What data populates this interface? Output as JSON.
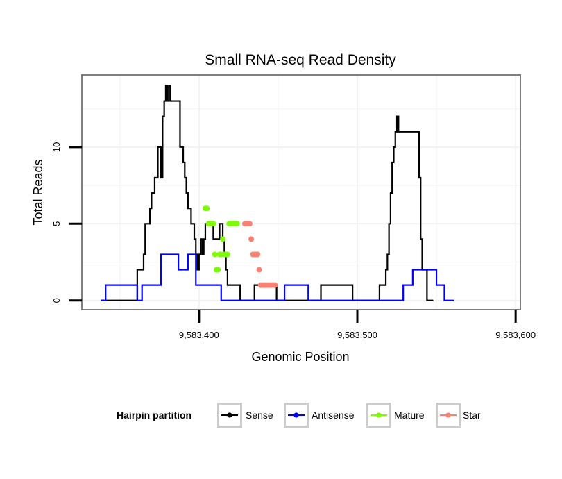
{
  "chart_data": {
    "type": "line",
    "title": "Small RNA-seq Read Density",
    "xlabel": "Genomic Position",
    "ylabel": "Total Reads",
    "xlim": [
      9583326,
      9583603
    ],
    "ylim": [
      -0.6,
      14.7
    ],
    "x_ticks": [
      9583400,
      9583500,
      9583600
    ],
    "x_tick_labels": [
      "9,583,400",
      "9,583,500",
      "9,583,600"
    ],
    "y_ticks": [
      0,
      5,
      10
    ],
    "y_tick_labels": [
      "0",
      "5",
      "10"
    ],
    "grid": true,
    "legend": {
      "title": "Hairpin partition",
      "position": "bottom",
      "entries": [
        {
          "label": "Sense",
          "color": "#000000"
        },
        {
          "label": "Antisense",
          "color": "#0000ff"
        },
        {
          "label": "Mature",
          "color": "#7cfc00"
        },
        {
          "label": "Star",
          "color": "#fa8072"
        }
      ]
    },
    "series": [
      {
        "name": "Sense",
        "color": "#000000",
        "style": "step",
        "points": [
          [
            9583338,
            0
          ],
          [
            9583359,
            0
          ],
          [
            9583361,
            2
          ],
          [
            9583364,
            2
          ],
          [
            9583365,
            3
          ],
          [
            9583366,
            5
          ],
          [
            9583368,
            5
          ],
          [
            9583369,
            6
          ],
          [
            9583370,
            7
          ],
          [
            9583372,
            8
          ],
          [
            9583373,
            8
          ],
          [
            9583374,
            10
          ],
          [
            9583375,
            10
          ],
          [
            9583376,
            8
          ],
          [
            9583377,
            12
          ],
          [
            9583378,
            13
          ],
          [
            9583379,
            14
          ],
          [
            9583380,
            13
          ],
          [
            9583381,
            14
          ],
          [
            9583382,
            13
          ],
          [
            9583387,
            13
          ],
          [
            9583388,
            10
          ],
          [
            9583390,
            9
          ],
          [
            9583391,
            8
          ],
          [
            9583392,
            7
          ],
          [
            9583393,
            6
          ],
          [
            9583395,
            5
          ],
          [
            9583396,
            5
          ],
          [
            9583397,
            4
          ],
          [
            9583398,
            3
          ],
          [
            9583399,
            2
          ],
          [
            9583400,
            3
          ],
          [
            9583401,
            4
          ],
          [
            9583402,
            3
          ],
          [
            9583403,
            4
          ],
          [
            9583404,
            5
          ],
          [
            9583408,
            5
          ],
          [
            9583409,
            4
          ],
          [
            9583412,
            4
          ],
          [
            9583413,
            5
          ],
          [
            9583414,
            5
          ],
          [
            9583415,
            4
          ],
          [
            9583416,
            3
          ],
          [
            9583417,
            2
          ],
          [
            9583418,
            1
          ],
          [
            9583425,
            1
          ],
          [
            9583426,
            0
          ],
          [
            9583434,
            0
          ],
          [
            9583435,
            1
          ],
          [
            9583448,
            1
          ],
          [
            9583449,
            0
          ],
          [
            9583476,
            0
          ],
          [
            9583477,
            1
          ],
          [
            9583496,
            1
          ],
          [
            9583497,
            0
          ],
          [
            9583513,
            0
          ],
          [
            9583514,
            1
          ],
          [
            9583517,
            1
          ],
          [
            9583518,
            2
          ],
          [
            9583519,
            3
          ],
          [
            9583520,
            5
          ],
          [
            9583521,
            7
          ],
          [
            9583522,
            9
          ],
          [
            9583523,
            10
          ],
          [
            9583524,
            11
          ],
          [
            9583525,
            12
          ],
          [
            9583526,
            11
          ],
          [
            9583538,
            11
          ],
          [
            9583539,
            8
          ],
          [
            9583540,
            4
          ],
          [
            9583541,
            2
          ],
          [
            9583543,
            2
          ],
          [
            9583544,
            0
          ],
          [
            9583548,
            0
          ]
        ]
      },
      {
        "name": "Antisense",
        "color": "#0000ff",
        "style": "step",
        "points": [
          [
            9583338,
            0
          ],
          [
            9583340,
            0
          ],
          [
            9583341,
            1
          ],
          [
            9583360,
            1
          ],
          [
            9583361,
            0
          ],
          [
            9583363,
            0
          ],
          [
            9583364,
            1
          ],
          [
            9583375,
            1
          ],
          [
            9583376,
            3
          ],
          [
            9583386,
            3
          ],
          [
            9583387,
            2
          ],
          [
            9583392,
            2
          ],
          [
            9583393,
            3
          ],
          [
            9583397,
            3
          ],
          [
            9583398,
            1
          ],
          [
            9583413,
            1
          ],
          [
            9583414,
            0
          ],
          [
            9583453,
            0
          ],
          [
            9583454,
            1
          ],
          [
            9583468,
            1
          ],
          [
            9583469,
            0
          ],
          [
            9583528,
            0
          ],
          [
            9583529,
            1
          ],
          [
            9583534,
            1
          ],
          [
            9583535,
            2
          ],
          [
            9583549,
            2
          ],
          [
            9583550,
            1
          ],
          [
            9583554,
            1
          ],
          [
            9583555,
            0
          ],
          [
            9583561,
            0
          ]
        ]
      },
      {
        "name": "Mature",
        "color": "#7cfc00",
        "style": "points",
        "points": [
          [
            9583404,
            6
          ],
          [
            9583405,
            6
          ],
          [
            9583406,
            5
          ],
          [
            9583407,
            5
          ],
          [
            9583408,
            5
          ],
          [
            9583409,
            5
          ],
          [
            9583410,
            3
          ],
          [
            9583411,
            2
          ],
          [
            9583412,
            2
          ],
          [
            9583413,
            3
          ],
          [
            9583414,
            3
          ],
          [
            9583415,
            4
          ],
          [
            9583416,
            3
          ],
          [
            9583417,
            3
          ],
          [
            9583418,
            3
          ],
          [
            9583419,
            5
          ],
          [
            9583420,
            5
          ],
          [
            9583421,
            5
          ],
          [
            9583422,
            5
          ],
          [
            9583423,
            5
          ],
          [
            9583424,
            5
          ]
        ]
      },
      {
        "name": "Star",
        "color": "#fa8072",
        "style": "points",
        "points": [
          [
            9583429,
            5
          ],
          [
            9583430,
            5
          ],
          [
            9583431,
            5
          ],
          [
            9583432,
            5
          ],
          [
            9583433,
            4
          ],
          [
            9583434,
            3
          ],
          [
            9583435,
            3
          ],
          [
            9583436,
            3
          ],
          [
            9583437,
            3
          ],
          [
            9583438,
            2
          ],
          [
            9583439,
            1
          ],
          [
            9583440,
            1
          ],
          [
            9583441,
            1
          ],
          [
            9583442,
            1
          ],
          [
            9583443,
            1
          ],
          [
            9583444,
            1
          ],
          [
            9583445,
            1
          ],
          [
            9583446,
            1
          ],
          [
            9583447,
            1
          ],
          [
            9583448,
            1
          ]
        ]
      }
    ]
  }
}
